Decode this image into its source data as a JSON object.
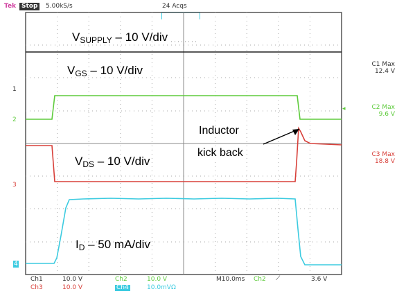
{
  "header": {
    "brand": "Tek",
    "mode_badge": "Stop",
    "sample_rate": "5.00kS/s",
    "acquisitions": "24 Acqs"
  },
  "traces": {
    "supply_label": {
      "main": "V",
      "sub": "SUPPLY",
      "rest": " – 10 V/div"
    },
    "vgs_label": {
      "main": "V",
      "sub": "GS",
      "rest": " – 10 V/div"
    },
    "vds_label": {
      "main": "V",
      "sub": "DS",
      "rest": " – 10 V/div"
    },
    "id_label": {
      "main": "I",
      "sub": "D",
      "rest": " – 50 mA/div"
    }
  },
  "annotation": {
    "line1": "Inductor",
    "line2": "kick back"
  },
  "measurements": [
    {
      "name": "C1 Max",
      "value": "12.4 V",
      "color": "#333333"
    },
    {
      "name": "C2 Max",
      "value": "9.6 V",
      "color": "#5ecb3c"
    },
    {
      "name": "C3 Max",
      "value": "18.8 V",
      "color": "#d8403a"
    }
  ],
  "ground_markers": {
    "ch1": "1",
    "ch2": "2",
    "ch3": "3",
    "ch4": "4"
  },
  "footer": {
    "ch1_label": "Ch1",
    "ch1_scale": "10.0 V",
    "ch2_label": "Ch2",
    "ch2_scale": "10.0 V",
    "ch3_label": "Ch3",
    "ch3_scale": "10.0 V",
    "ch4_label": "Ch4",
    "ch4_scale": "10.0mVΩ",
    "timebase": "M10.0ms",
    "trigger_source": "Ch2",
    "trigger_slope": "⟋",
    "trigger_level": "3.6 V"
  },
  "colors": {
    "ch1": "#222222",
    "ch2": "#5ecb3c",
    "ch3": "#d8403a",
    "ch4": "#3ccbe0",
    "grid": "#aaaaaa",
    "frame": "#555555"
  }
}
